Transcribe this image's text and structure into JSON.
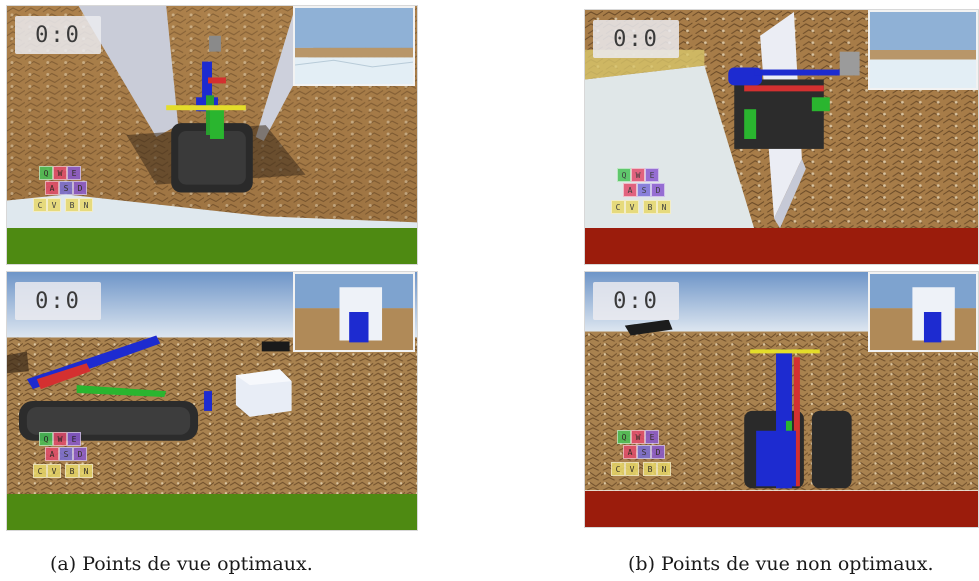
{
  "panels": [
    {
      "id": "top-left",
      "score": "0:0",
      "status_color": "#4e8a12",
      "status": "optimal"
    },
    {
      "id": "bottom-left",
      "score": "0:0",
      "status_color": "#4e8a12",
      "status": "optimal"
    },
    {
      "id": "top-right",
      "score": "0:0",
      "status_color": "#9b1c0c",
      "status": "non-optimal"
    },
    {
      "id": "bottom-right",
      "score": "0:0",
      "status_color": "#9b1c0c",
      "status": "non-optimal"
    }
  ],
  "keys": {
    "row1": [
      "Q",
      "W",
      "E"
    ],
    "row2": [
      "A",
      "S",
      "D"
    ],
    "row3": [
      "C",
      "V",
      "B",
      "N"
    ]
  },
  "key_colors": {
    "Q": "#49c257",
    "W": "#e24c6c",
    "E": "#8a5ad0",
    "A": "#e24c6c",
    "S": "#7a6fd8",
    "D": "#8a5ad0",
    "C": "#e8d86a",
    "V": "#e8d86a",
    "B": "#e8d86a",
    "N": "#e8d86a"
  },
  "captions": {
    "left": "(a) Points de vue optimaux.",
    "right": "(b) Points de vue non optimaux."
  },
  "colors": {
    "sky_top": "#6e95c8",
    "sky_bottom": "#dde6f0",
    "ground": "#a8814f",
    "optimal": "#4e8a12",
    "non_optimal": "#9b1c0c"
  }
}
